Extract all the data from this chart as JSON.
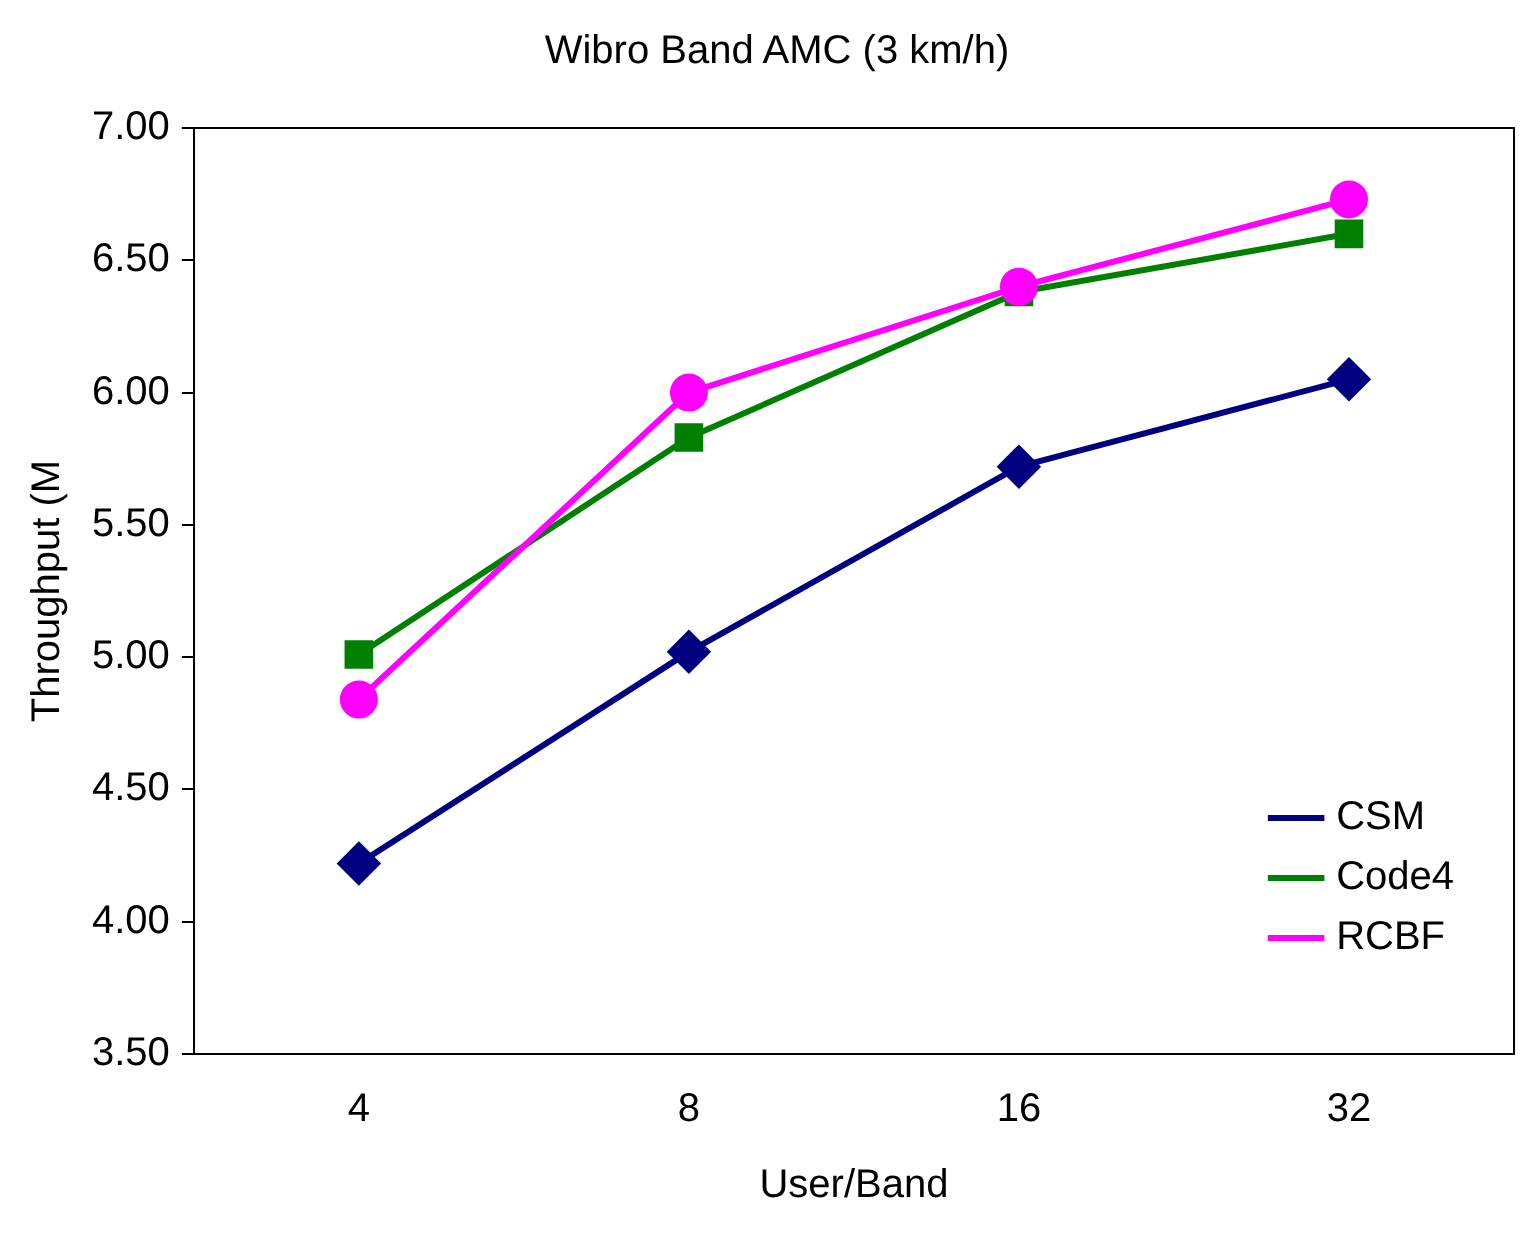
{
  "chart_data": {
    "type": "line",
    "title": "Wibro Band AMC (3 km/h)",
    "xlabel": "User/Band",
    "ylabel": "Throughput (M",
    "categories": [
      "4",
      "8",
      "16",
      "32"
    ],
    "series": [
      {
        "name": "CSM",
        "color": "#000080",
        "marker": "diamond",
        "values": [
          4.22,
          5.02,
          5.72,
          6.05
        ]
      },
      {
        "name": "Code4",
        "color": "#008000",
        "marker": "square",
        "values": [
          5.01,
          5.83,
          6.38,
          6.6
        ]
      },
      {
        "name": "RCBF",
        "color": "#ff00ff",
        "marker": "circle",
        "values": [
          4.84,
          6.0,
          6.4,
          6.73
        ]
      }
    ],
    "ylim": [
      3.5,
      7.0
    ],
    "yticks": [
      {
        "value": 3.5,
        "label": "3.50"
      },
      {
        "value": 4.0,
        "label": "4.00"
      },
      {
        "value": 4.5,
        "label": "4.50"
      },
      {
        "value": 5.0,
        "label": "5.00"
      },
      {
        "value": 5.5,
        "label": "5.50"
      },
      {
        "value": 6.0,
        "label": "6.00"
      },
      {
        "value": 6.5,
        "label": "6.50"
      },
      {
        "value": 7.0,
        "label": "7.00"
      }
    ],
    "grid": false,
    "legend": "bottom right",
    "line_style": "solid"
  }
}
